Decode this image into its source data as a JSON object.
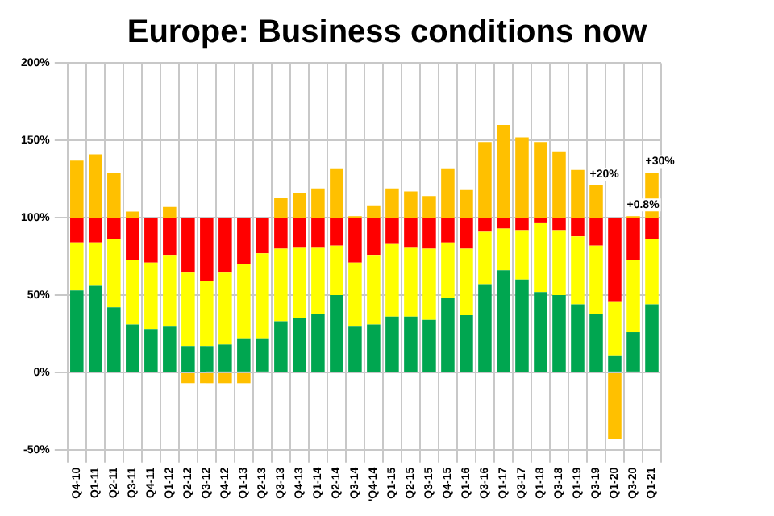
{
  "chart_data": {
    "type": "bar",
    "title": "Europe: Business conditions now",
    "stacked": true,
    "grid": true,
    "legend": false,
    "categories": [
      "Q4-10",
      "Q1-11",
      "Q2-11",
      "Q3-11",
      "Q4-11",
      "Q1-12",
      "Q2-12",
      "Q3-12",
      "Q4-12",
      "Q1-13",
      "Q2-13",
      "Q3-13",
      "Q4-13",
      "Q1-14",
      "Q2-14",
      "Q3-14",
      "'Q4-14",
      "Q1-15",
      "Q2-15",
      "Q3-15",
      "Q4-15",
      "Q1-16",
      "Q3-16",
      "Q1-17",
      "Q3-17",
      "Q1-18",
      "Q3-18",
      "Q1-19",
      "Q3-19",
      "Q1-20",
      "Q3-20",
      "Q1-21"
    ],
    "series": [
      {
        "color": "#00a650",
        "values": [
          53,
          56,
          42,
          31,
          28,
          30,
          17,
          17,
          18,
          22,
          22,
          33,
          35,
          38,
          50,
          30,
          31,
          36,
          36,
          34,
          48,
          37,
          57,
          66,
          60,
          52,
          50,
          44,
          38,
          11,
          26,
          44
        ]
      },
      {
        "color": "#ffff00",
        "values": [
          31,
          28,
          44,
          42,
          43,
          46,
          48,
          42,
          47,
          48,
          55,
          47,
          46,
          43,
          32,
          41,
          45,
          47,
          45,
          46,
          36,
          43,
          34,
          27,
          32,
          45,
          42,
          44,
          44,
          35,
          47,
          42
        ]
      },
      {
        "color": "#ff0000",
        "values": [
          16,
          16,
          14,
          27,
          29,
          24,
          35,
          41,
          35,
          30,
          23,
          20,
          19,
          19,
          18,
          29,
          24,
          17,
          19,
          20,
          16,
          20,
          9,
          7,
          8,
          3,
          8,
          12,
          18,
          54,
          27,
          14
        ]
      },
      {
        "color": "#ffc000",
        "values": [
          37,
          41,
          29,
          4,
          null,
          7,
          -7,
          -7,
          -7,
          -7,
          null,
          13,
          16,
          19,
          32,
          1,
          8,
          19,
          17,
          14,
          32,
          18,
          49,
          60,
          52,
          49,
          43,
          31,
          21,
          -43,
          1,
          29
        ]
      }
    ],
    "ylim": [
      -50,
      200
    ],
    "yticks": [
      {
        "value": -50,
        "label": "-50%"
      },
      {
        "value": 0,
        "label": "0%"
      },
      {
        "value": 50,
        "label": "50%"
      },
      {
        "value": 100,
        "label": "100%"
      },
      {
        "value": 150,
        "label": "150%"
      },
      {
        "value": 200,
        "label": "200%"
      }
    ],
    "annotations": [
      {
        "text": "+20%",
        "x": "Q3-19",
        "y": 121
      },
      {
        "text": "+0.8%",
        "x": "Q3-20",
        "y": 101
      },
      {
        "text": "+30%",
        "x": "Q1-21",
        "y": 129
      }
    ]
  }
}
